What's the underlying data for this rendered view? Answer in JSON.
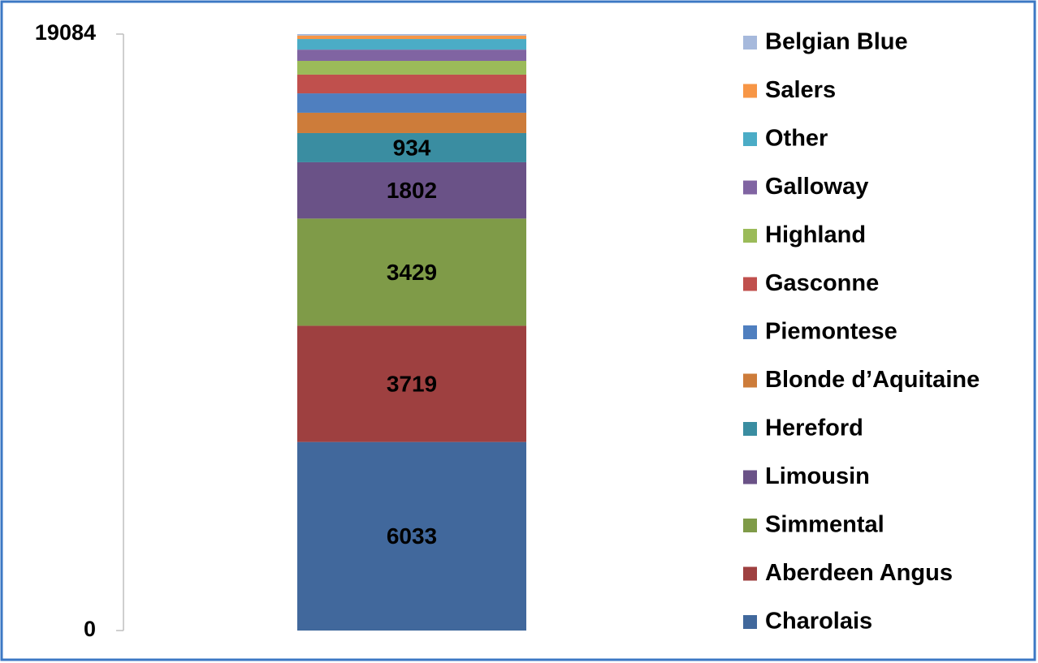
{
  "chart_data": {
    "type": "stacked-bar",
    "ylim": [
      0,
      19084
    ],
    "yticks": [
      0,
      19084
    ],
    "series": [
      {
        "name": "Charolais",
        "color": "#41689c",
        "values": [
          6033
        ],
        "data_labels": true
      },
      {
        "name": "Aberdeen Angus",
        "color": "#9e4040",
        "values": [
          3719
        ],
        "data_labels": true
      },
      {
        "name": "Simmental",
        "color": "#7f9b48",
        "values": [
          3429
        ],
        "data_labels": true
      },
      {
        "name": "Limousin",
        "color": "#6a5287",
        "values": [
          1802
        ],
        "data_labels": true
      },
      {
        "name": "Hereford",
        "color": "#3a8da1",
        "values": [
          934
        ],
        "data_labels": true
      },
      {
        "name": "Blonde  d’Aquitaine",
        "color": "#cd7c3a",
        "values": [
          650
        ]
      },
      {
        "name": "Piemontese",
        "color": "#4f7fbf",
        "values": [
          620
        ]
      },
      {
        "name": "Gasconne",
        "color": "#c0504d",
        "values": [
          600
        ]
      },
      {
        "name": "Highland",
        "color": "#9bbb59",
        "values": [
          440
        ]
      },
      {
        "name": "Galloway",
        "color": "#8064a2",
        "values": [
          360
        ]
      },
      {
        "name": "Other",
        "color": "#4bacc6",
        "values": [
          340
        ]
      },
      {
        "name": "Salers",
        "color": "#f79646",
        "values": [
          110
        ]
      },
      {
        "name": "Belgian Blue",
        "color": "#a6b9dc",
        "values": [
          47
        ]
      }
    ],
    "legend": "right"
  }
}
